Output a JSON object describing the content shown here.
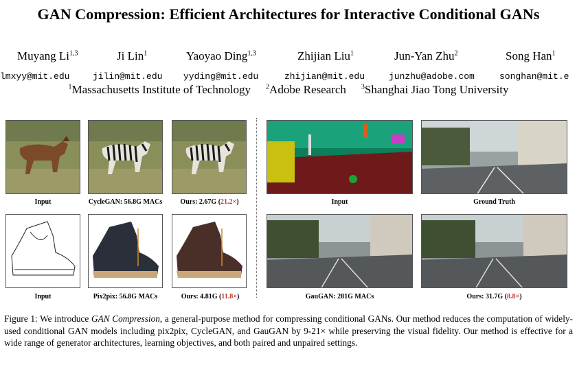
{
  "title": "GAN Compression: Efficient Architectures for Interactive Conditional GANs",
  "authors": [
    {
      "name": "Muyang Li",
      "sup": "1,3",
      "email": "lmxyy@mit.edu"
    },
    {
      "name": "Ji Lin",
      "sup": "1",
      "email": "jilin@mit.edu"
    },
    {
      "name": "Yaoyao Ding",
      "sup": "1,3",
      "email": "yyding@mit.edu"
    },
    {
      "name": "Zhijian Liu",
      "sup": "1",
      "email": "zhijian@mit.edu"
    },
    {
      "name": "Jun-Yan Zhu",
      "sup": "2",
      "email": "junzhu@adobe.com"
    },
    {
      "name": "Song Han",
      "sup": "1",
      "email": "songhan@mit.e"
    }
  ],
  "affiliations": [
    {
      "sup": "1",
      "name": "Massachusetts Institute of Technology"
    },
    {
      "sup": "2",
      "name": "Adobe Research"
    },
    {
      "sup": "3",
      "name": "Shanghai Jiao Tong University"
    }
  ],
  "figure": {
    "row1": {
      "input": "Input",
      "cyclegan": "CycleGAN: 56.8G MACs",
      "ours_prefix": "Ours: 2.67G (",
      "ours_speedup": "21.2×",
      "ours_suffix": ")",
      "seg_input": "Input",
      "ground_truth": "Ground Truth"
    },
    "row2": {
      "input": "Input",
      "pix2pix": "Pix2pix: 56.8G MACs",
      "ours_prefix": "Ours: 4.81G (",
      "ours_speedup": "11.8×",
      "ours_suffix": ")",
      "gaugan": "GauGAN: 281G MACs",
      "gaugan_ours_prefix": "Ours: 31.7G (",
      "gaugan_ours_speedup": "8.8×",
      "gaugan_ours_suffix": ")"
    },
    "colors": {
      "speedup_red": "#c0392b"
    }
  },
  "caption": {
    "label": "Figure 1: We introduce ",
    "emph": "GAN Compression",
    "text": ", a general-purpose method for compressing conditional GANs. Our method reduces the computation of widely-used conditional GAN models including pix2pix, CycleGAN, and GauGAN by 9-21× while preserving the visual fidelity. Our method is effective for a wide range of generator architectures, learning objectives, and both paired and unpaired settings."
  }
}
